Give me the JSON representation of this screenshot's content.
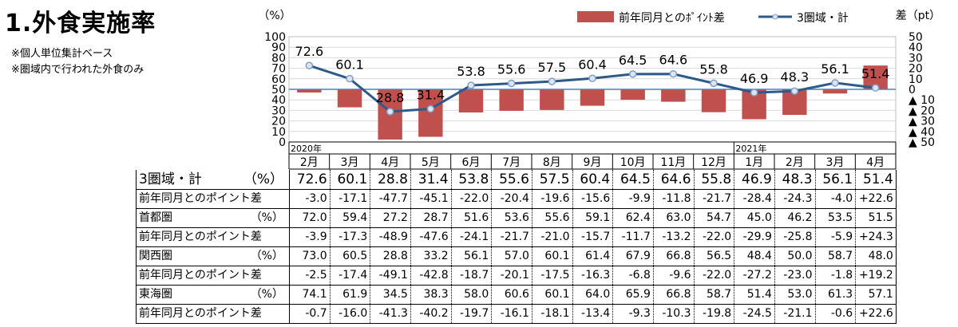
{
  "title": "1.外食実施率",
  "notes": [
    "※個人単位集計ベース",
    "※圏域内で行われた外食のみ"
  ],
  "chart_data": {
    "type": "bar+line",
    "categories": [
      "2月",
      "3月",
      "4月",
      "5月",
      "6月",
      "7月",
      "8月",
      "9月",
      "10月",
      "11月",
      "12月",
      "1月",
      "2月",
      "3月",
      "4月"
    ],
    "year_labels": [
      {
        "index": 0,
        "text": "2020年"
      },
      {
        "index": 11,
        "text": "2021年"
      }
    ],
    "left_axis": {
      "label": "（%）",
      "min": 0,
      "max": 100,
      "ticks": [
        0,
        10,
        20,
        30,
        40,
        50,
        60,
        70,
        80,
        90,
        100
      ]
    },
    "right_axis": {
      "label": "差（pt）",
      "min": -50,
      "max": 50,
      "tick_labels": [
        "▲ 50",
        "▲ 40",
        "▲ 30",
        "▲ 20",
        "▲ 10",
        "0",
        "10",
        "20",
        "30",
        "40",
        "50"
      ]
    },
    "legend": {
      "position": "top-right",
      "items": [
        "前年同月とのﾎﾟｲﾝﾄ差",
        "3圏域・計"
      ]
    },
    "series": [
      {
        "name": "前年同月とのﾎﾟｲﾝﾄ差",
        "type": "bar",
        "axis": "right",
        "color": "#c0504d",
        "values": [
          -3.0,
          -17.1,
          -47.7,
          -45.1,
          -22.0,
          -20.4,
          -19.6,
          -15.6,
          -9.9,
          -11.8,
          -21.7,
          -28.4,
          -24.3,
          -4.0,
          22.6
        ]
      },
      {
        "name": "3圏域・計",
        "type": "line",
        "axis": "left",
        "color": "#2e5a8a",
        "values": [
          72.6,
          60.1,
          28.8,
          31.4,
          53.8,
          55.6,
          57.5,
          60.4,
          64.5,
          64.6,
          55.8,
          46.9,
          48.3,
          56.1,
          51.4
        ],
        "labels": [
          "72.6",
          "60.1",
          "28.8",
          "31.4",
          "53.8",
          "55.6",
          "57.5",
          "60.4",
          "64.5",
          "64.6",
          "55.8",
          "46.9",
          "48.3",
          "56.1",
          "51.4"
        ]
      }
    ]
  },
  "table": {
    "rows": [
      {
        "label": "3圏域・計",
        "unit": "（%）",
        "kind": "main",
        "values": [
          "72.6",
          "60.1",
          "28.8",
          "31.4",
          "53.8",
          "55.6",
          "57.5",
          "60.4",
          "64.5",
          "64.6",
          "55.8",
          "46.9",
          "48.3",
          "56.1",
          "51.4"
        ]
      },
      {
        "label": "前年同月とのポイント差",
        "unit": "",
        "kind": "diff",
        "values": [
          "-3.0",
          "-17.1",
          "-47.7",
          "-45.1",
          "-22.0",
          "-20.4",
          "-19.6",
          "-15.6",
          "-9.9",
          "-11.8",
          "-21.7",
          "-28.4",
          "-24.3",
          "-4.0",
          "+22.6"
        ]
      },
      {
        "label": "首都圏",
        "unit": "（%）",
        "kind": "pct",
        "values": [
          "72.0",
          "59.4",
          "27.2",
          "28.7",
          "51.6",
          "53.6",
          "55.6",
          "59.1",
          "62.4",
          "63.0",
          "54.7",
          "45.0",
          "46.2",
          "53.5",
          "51.5"
        ]
      },
      {
        "label": "前年同月とのポイント差",
        "unit": "",
        "kind": "diff",
        "values": [
          "-3.9",
          "-17.3",
          "-48.9",
          "-47.6",
          "-24.1",
          "-21.7",
          "-21.0",
          "-15.7",
          "-11.7",
          "-13.2",
          "-22.0",
          "-29.9",
          "-25.8",
          "-5.9",
          "+24.3"
        ]
      },
      {
        "label": "関西圏",
        "unit": "（%）",
        "kind": "pct",
        "values": [
          "73.0",
          "60.5",
          "28.8",
          "33.2",
          "56.1",
          "57.0",
          "60.1",
          "61.4",
          "67.9",
          "66.8",
          "56.5",
          "48.4",
          "50.0",
          "58.7",
          "48.0"
        ]
      },
      {
        "label": "前年同月とのポイント差",
        "unit": "",
        "kind": "diff",
        "values": [
          "-2.5",
          "-17.4",
          "-49.1",
          "-42.8",
          "-18.7",
          "-20.1",
          "-17.5",
          "-16.3",
          "-6.8",
          "-9.6",
          "-22.0",
          "-27.2",
          "-23.0",
          "-1.8",
          "+19.2"
        ]
      },
      {
        "label": "東海圏",
        "unit": "（%）",
        "kind": "pct",
        "values": [
          "74.1",
          "61.9",
          "34.5",
          "38.3",
          "58.0",
          "60.6",
          "60.1",
          "64.0",
          "65.9",
          "66.8",
          "58.7",
          "51.4",
          "53.0",
          "61.3",
          "57.1"
        ]
      },
      {
        "label": "前年同月とのポイント差",
        "unit": "",
        "kind": "diff",
        "values": [
          "-0.7",
          "-16.0",
          "-41.3",
          "-40.2",
          "-19.7",
          "-16.1",
          "-18.1",
          "-13.4",
          "-9.3",
          "-10.3",
          "-19.8",
          "-24.5",
          "-21.1",
          "-0.6",
          "+22.6"
        ]
      }
    ]
  }
}
